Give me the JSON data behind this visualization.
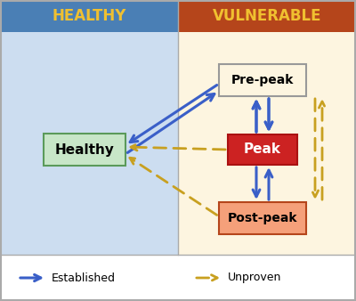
{
  "healthy_bg": "#ccddf0",
  "vulnerable_bg": "#fdf5e0",
  "healthy_header_bg": "#4a7fb5",
  "vulnerable_header_bg": "#b5451b",
  "header_text_color": "#f0c030",
  "healthy_label": "HEALTHY",
  "vulnerable_label": "VULNERABLE",
  "box_healthy_label": "Healthy",
  "box_healthy_bg": "#c8e6c8",
  "box_healthy_edge": "#5a9a5a",
  "box_prepeak_label": "Pre-peak",
  "box_prepeak_bg": "#fdf5e0",
  "box_prepeak_edge": "#999999",
  "box_peak_label": "Peak",
  "box_peak_bg": "#cc2222",
  "box_peak_edge": "#aa1111",
  "box_peak_text": "#ffffff",
  "box_postpeak_label": "Post-peak",
  "box_postpeak_bg": "#f5a07a",
  "box_postpeak_edge": "#b5451b",
  "arrow_blue": "#3a5fc8",
  "arrow_gold": "#c8a020",
  "legend_established": "Established",
  "legend_unproven": "Unproven",
  "footer_bg": "#ffffff",
  "border_color": "#aaaaaa",
  "figsize": [
    4.0,
    3.38
  ],
  "dpi": 100
}
